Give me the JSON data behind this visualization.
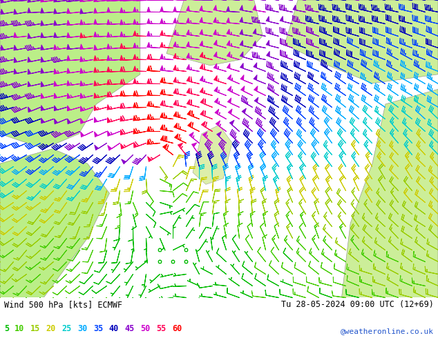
{
  "title_left": "Wind 500 hPa [kts] ECMWF",
  "title_right": "Tu 28-05-2024 09:00 UTC (12+69)",
  "credit": "@weatheronline.co.uk",
  "legend_values": [
    5,
    10,
    15,
    20,
    25,
    30,
    35,
    40,
    45,
    50,
    55,
    60
  ],
  "legend_colors": [
    "#00bb00",
    "#44cc00",
    "#99cc00",
    "#cccc00",
    "#00cccc",
    "#00aaff",
    "#0044ff",
    "#0000bb",
    "#8800cc",
    "#cc00cc",
    "#ff0055",
    "#ff0000"
  ],
  "background_color": "#ffffff",
  "figsize": [
    6.34,
    4.9
  ],
  "dpi": 100,
  "nx": 34,
  "ny": 26
}
